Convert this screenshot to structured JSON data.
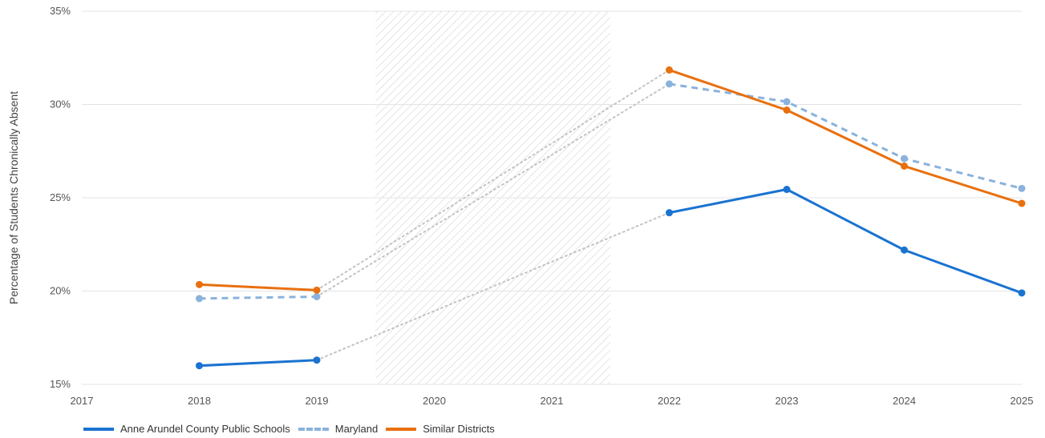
{
  "chart_data": {
    "type": "line",
    "ylabel": "Percentage of Students Chronically Absent",
    "xlabel": "",
    "x": [
      2017,
      2018,
      2019,
      2020,
      2021,
      2022,
      2023,
      2024,
      2025
    ],
    "x_tick_labels": [
      "2017",
      "2018",
      "2019",
      "2020",
      "2021",
      "2022",
      "2023",
      "2024",
      "2025"
    ],
    "xlim": [
      2017,
      2025
    ],
    "ylim": [
      15,
      35
    ],
    "y_ticks": [
      15,
      20,
      25,
      30,
      35
    ],
    "y_tick_labels": [
      "15%",
      "20%",
      "25%",
      "30%",
      "35%"
    ],
    "grid": "horizontal",
    "legend_position": "bottom-left",
    "shaded_range": [
      2019.5,
      2021.5
    ],
    "gap_connectors": "dotted",
    "series": [
      {
        "name": "Anne Arundel County Public Schools",
        "color": "#1a73d1",
        "style": "solid",
        "points": [
          [
            2018,
            16.0
          ],
          [
            2019,
            16.3
          ],
          [
            2022,
            24.2
          ],
          [
            2023,
            25.45
          ],
          [
            2024,
            22.2
          ],
          [
            2025,
            19.9
          ]
        ]
      },
      {
        "name": "Maryland",
        "color": "#8ab2dc",
        "style": "dashed",
        "points": [
          [
            2018,
            19.6
          ],
          [
            2019,
            19.7
          ],
          [
            2022,
            31.1
          ],
          [
            2023,
            30.15
          ],
          [
            2024,
            27.1
          ],
          [
            2025,
            25.5
          ]
        ]
      },
      {
        "name": "Similar Districts",
        "color": "#e8700f",
        "style": "solid",
        "points": [
          [
            2018,
            20.35
          ],
          [
            2019,
            20.05
          ],
          [
            2022,
            31.85
          ],
          [
            2023,
            29.7
          ],
          [
            2024,
            26.7
          ],
          [
            2025,
            24.7
          ]
        ]
      }
    ]
  }
}
